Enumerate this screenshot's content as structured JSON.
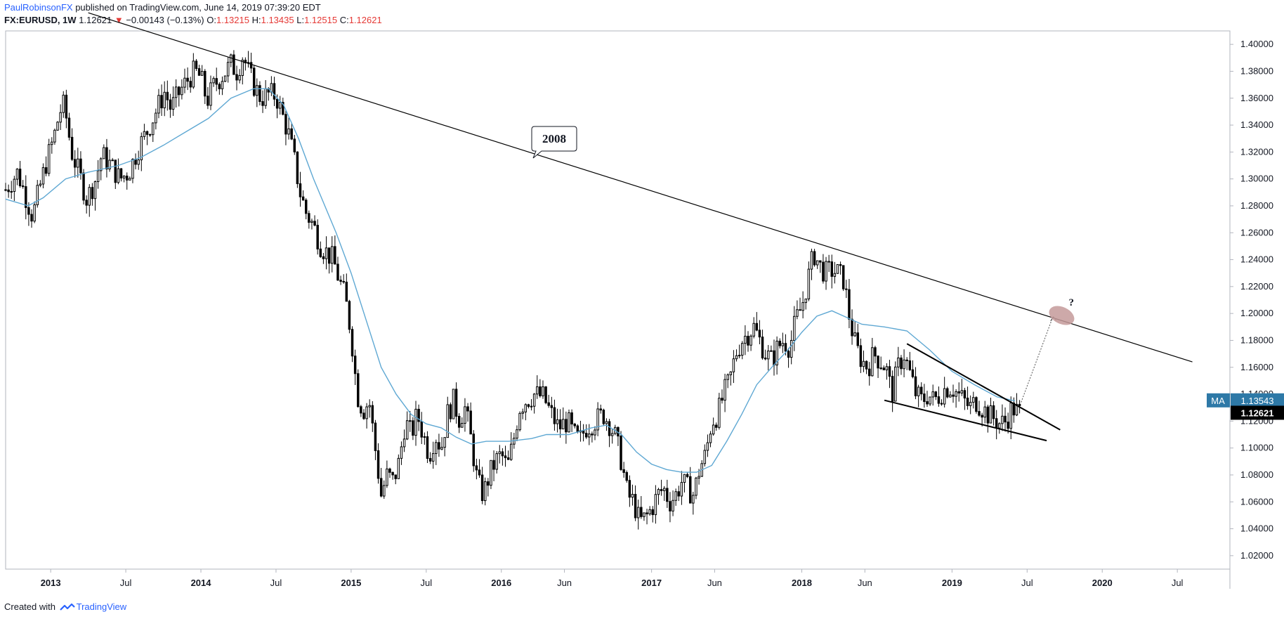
{
  "header": {
    "author": "PaulRobinsonFX",
    "published": "published on TradingView.com, June 14, 2019 07:39:20 EDT",
    "symbol": "FX:EURUSD, 1W",
    "last": "1.12621",
    "change_arrow": "▼",
    "change": "−0.00143 (−0.13%)",
    "o_label": "O:",
    "o_val": "1.13215",
    "h_label": "H:",
    "h_val": "1.13435",
    "l_label": "L:",
    "l_val": "1.12515",
    "c_label": "C:",
    "c_val": "1.12621"
  },
  "footer": {
    "created_with": "Created with",
    "brand": "TradingView"
  },
  "colors": {
    "candle": "#000000",
    "ma": "#5fa8d3",
    "trendline": "#000000",
    "ma_tag": "#2e79a7",
    "price_tag": "#000000",
    "target_ellipse": "#c49a9a"
  },
  "chart_data": {
    "type": "candlestick",
    "symbol": "FX:EURUSD",
    "interval": "1W",
    "ylim": [
      1.01,
      1.41
    ],
    "y_ticks": [
      "1.40000",
      "1.38000",
      "1.36000",
      "1.34000",
      "1.32000",
      "1.30000",
      "1.28000",
      "1.26000",
      "1.24000",
      "1.22000",
      "1.20000",
      "1.18000",
      "1.16000",
      "1.14000",
      "1.12000",
      "1.10000",
      "1.08000",
      "1.06000",
      "1.04000",
      "1.02000"
    ],
    "x_ticks": [
      "2013",
      "Jul",
      "2014",
      "Jul",
      "2015",
      "Jul",
      "2016",
      "Jun",
      "2017",
      "Jun",
      "2018",
      "Jun",
      "2019",
      "Jul",
      "2020",
      "Jul"
    ],
    "x_ticks_decimal": [
      2013.0,
      2013.5,
      2014.0,
      2014.5,
      2015.0,
      2015.5,
      2016.0,
      2016.42,
      2017.0,
      2017.42,
      2018.0,
      2018.42,
      2019.0,
      2019.5,
      2020.0,
      2020.5
    ],
    "x_range": [
      2012.7,
      2020.85
    ],
    "close_path": [
      [
        2012.7,
        1.292
      ],
      [
        2012.78,
        1.305
      ],
      [
        2012.84,
        1.285
      ],
      [
        2012.88,
        1.272
      ],
      [
        2012.93,
        1.295
      ],
      [
        2012.97,
        1.312
      ],
      [
        2013.02,
        1.33
      ],
      [
        2013.06,
        1.35
      ],
      [
        2013.09,
        1.355
      ],
      [
        2013.14,
        1.32
      ],
      [
        2013.2,
        1.3
      ],
      [
        2013.24,
        1.285
      ],
      [
        2013.3,
        1.3
      ],
      [
        2013.34,
        1.318
      ],
      [
        2013.4,
        1.31
      ],
      [
        2013.46,
        1.3
      ],
      [
        2013.52,
        1.305
      ],
      [
        2013.58,
        1.322
      ],
      [
        2013.64,
        1.335
      ],
      [
        2013.7,
        1.35
      ],
      [
        2013.76,
        1.365
      ],
      [
        2013.8,
        1.352
      ],
      [
        2013.86,
        1.365
      ],
      [
        2013.92,
        1.375
      ],
      [
        2013.96,
        1.38
      ],
      [
        2014.0,
        1.375
      ],
      [
        2014.04,
        1.358
      ],
      [
        2014.09,
        1.37
      ],
      [
        2014.15,
        1.378
      ],
      [
        2014.2,
        1.385
      ],
      [
        2014.24,
        1.38
      ],
      [
        2014.28,
        1.392
      ],
      [
        2014.32,
        1.378
      ],
      [
        2014.36,
        1.368
      ],
      [
        2014.4,
        1.36
      ],
      [
        2014.45,
        1.363
      ],
      [
        2014.5,
        1.362
      ],
      [
        2014.54,
        1.348
      ],
      [
        2014.58,
        1.335
      ],
      [
        2014.62,
        1.315
      ],
      [
        2014.66,
        1.29
      ],
      [
        2014.7,
        1.275
      ],
      [
        2014.75,
        1.265
      ],
      [
        2014.8,
        1.25
      ],
      [
        2014.84,
        1.245
      ],
      [
        2014.88,
        1.24
      ],
      [
        2014.92,
        1.225
      ],
      [
        2014.96,
        1.212
      ],
      [
        2015.0,
        1.185
      ],
      [
        2015.04,
        1.14
      ],
      [
        2015.08,
        1.128
      ],
      [
        2015.12,
        1.135
      ],
      [
        2015.16,
        1.1
      ],
      [
        2015.2,
        1.065
      ],
      [
        2015.24,
        1.08
      ],
      [
        2015.28,
        1.075
      ],
      [
        2015.32,
        1.09
      ],
      [
        2015.36,
        1.12
      ],
      [
        2015.4,
        1.11
      ],
      [
        2015.44,
        1.125
      ],
      [
        2015.48,
        1.11
      ],
      [
        2015.52,
        1.095
      ],
      [
        2015.56,
        1.11
      ],
      [
        2015.6,
        1.1
      ],
      [
        2015.64,
        1.125
      ],
      [
        2015.68,
        1.135
      ],
      [
        2015.72,
        1.122
      ],
      [
        2015.76,
        1.13
      ],
      [
        2015.8,
        1.105
      ],
      [
        2015.84,
        1.075
      ],
      [
        2015.88,
        1.065
      ],
      [
        2015.92,
        1.08
      ],
      [
        2015.96,
        1.09
      ],
      [
        2016.0,
        1.095
      ],
      [
        2016.04,
        1.085
      ],
      [
        2016.08,
        1.105
      ],
      [
        2016.12,
        1.13
      ],
      [
        2016.16,
        1.135
      ],
      [
        2016.22,
        1.14
      ],
      [
        2016.28,
        1.138
      ],
      [
        2016.32,
        1.128
      ],
      [
        2016.38,
        1.115
      ],
      [
        2016.44,
        1.12
      ],
      [
        2016.48,
        1.11
      ],
      [
        2016.52,
        1.105
      ],
      [
        2016.56,
        1.115
      ],
      [
        2016.62,
        1.12
      ],
      [
        2016.68,
        1.125
      ],
      [
        2016.72,
        1.118
      ],
      [
        2016.76,
        1.108
      ],
      [
        2016.8,
        1.09
      ],
      [
        2016.84,
        1.065
      ],
      [
        2016.88,
        1.06
      ],
      [
        2016.92,
        1.045
      ],
      [
        2016.96,
        1.048
      ],
      [
        2017.0,
        1.055
      ],
      [
        2017.04,
        1.065
      ],
      [
        2017.08,
        1.07
      ],
      [
        2017.12,
        1.06
      ],
      [
        2017.16,
        1.065
      ],
      [
        2017.2,
        1.075
      ],
      [
        2017.24,
        1.07
      ],
      [
        2017.28,
        1.065
      ],
      [
        2017.32,
        1.085
      ],
      [
        2017.36,
        1.095
      ],
      [
        2017.4,
        1.12
      ],
      [
        2017.44,
        1.125
      ],
      [
        2017.48,
        1.14
      ],
      [
        2017.52,
        1.15
      ],
      [
        2017.56,
        1.17
      ],
      [
        2017.6,
        1.18
      ],
      [
        2017.64,
        1.185
      ],
      [
        2017.68,
        1.19
      ],
      [
        2017.72,
        1.18
      ],
      [
        2017.76,
        1.17
      ],
      [
        2017.8,
        1.165
      ],
      [
        2017.84,
        1.175
      ],
      [
        2017.88,
        1.18
      ],
      [
        2017.92,
        1.175
      ],
      [
        2017.96,
        1.195
      ],
      [
        2018.0,
        1.205
      ],
      [
        2018.04,
        1.225
      ],
      [
        2018.08,
        1.245
      ],
      [
        2018.12,
        1.235
      ],
      [
        2018.16,
        1.23
      ],
      [
        2018.2,
        1.232
      ],
      [
        2018.24,
        1.23
      ],
      [
        2018.28,
        1.225
      ],
      [
        2018.32,
        1.195
      ],
      [
        2018.36,
        1.175
      ],
      [
        2018.4,
        1.165
      ],
      [
        2018.44,
        1.16
      ],
      [
        2018.48,
        1.17
      ],
      [
        2018.52,
        1.165
      ],
      [
        2018.56,
        1.16
      ],
      [
        2018.6,
        1.14
      ],
      [
        2018.64,
        1.16
      ],
      [
        2018.68,
        1.17
      ],
      [
        2018.72,
        1.155
      ],
      [
        2018.76,
        1.14
      ],
      [
        2018.8,
        1.135
      ],
      [
        2018.84,
        1.14
      ],
      [
        2018.88,
        1.135
      ],
      [
        2018.92,
        1.14
      ],
      [
        2018.96,
        1.145
      ],
      [
        2019.0,
        1.145
      ],
      [
        2019.04,
        1.14
      ],
      [
        2019.08,
        1.135
      ],
      [
        2019.12,
        1.13
      ],
      [
        2019.16,
        1.135
      ],
      [
        2019.2,
        1.13
      ],
      [
        2019.24,
        1.125
      ],
      [
        2019.28,
        1.122
      ],
      [
        2019.32,
        1.118
      ],
      [
        2019.36,
        1.12
      ],
      [
        2019.4,
        1.13
      ],
      [
        2019.45,
        1.126
      ]
    ],
    "moving_average": [
      [
        2012.7,
        1.285
      ],
      [
        2012.85,
        1.28
      ],
      [
        2012.95,
        1.286
      ],
      [
        2013.1,
        1.3
      ],
      [
        2013.25,
        1.305
      ],
      [
        2013.45,
        1.31
      ],
      [
        2013.6,
        1.316
      ],
      [
        2013.75,
        1.325
      ],
      [
        2013.9,
        1.335
      ],
      [
        2014.05,
        1.345
      ],
      [
        2014.2,
        1.36
      ],
      [
        2014.35,
        1.367
      ],
      [
        2014.45,
        1.367
      ],
      [
        2014.55,
        1.355
      ],
      [
        2014.65,
        1.33
      ],
      [
        2014.75,
        1.3
      ],
      [
        2014.9,
        1.26
      ],
      [
        2015.0,
        1.23
      ],
      [
        2015.1,
        1.195
      ],
      [
        2015.2,
        1.16
      ],
      [
        2015.3,
        1.14
      ],
      [
        2015.4,
        1.125
      ],
      [
        2015.5,
        1.118
      ],
      [
        2015.6,
        1.115
      ],
      [
        2015.7,
        1.108
      ],
      [
        2015.8,
        1.103
      ],
      [
        2015.9,
        1.105
      ],
      [
        2016.05,
        1.105
      ],
      [
        2016.2,
        1.107
      ],
      [
        2016.3,
        1.11
      ],
      [
        2016.45,
        1.11
      ],
      [
        2016.6,
        1.115
      ],
      [
        2016.7,
        1.117
      ],
      [
        2016.8,
        1.11
      ],
      [
        2016.9,
        1.097
      ],
      [
        2017.0,
        1.088
      ],
      [
        2017.1,
        1.084
      ],
      [
        2017.2,
        1.082
      ],
      [
        2017.3,
        1.082
      ],
      [
        2017.4,
        1.087
      ],
      [
        2017.5,
        1.105
      ],
      [
        2017.6,
        1.125
      ],
      [
        2017.7,
        1.147
      ],
      [
        2017.8,
        1.16
      ],
      [
        2017.9,
        1.172
      ],
      [
        2018.0,
        1.186
      ],
      [
        2018.1,
        1.198
      ],
      [
        2018.2,
        1.202
      ],
      [
        2018.28,
        1.198
      ],
      [
        2018.4,
        1.192
      ],
      [
        2018.55,
        1.19
      ],
      [
        2018.7,
        1.187
      ],
      [
        2018.85,
        1.173
      ],
      [
        2019.0,
        1.157
      ],
      [
        2019.15,
        1.147
      ],
      [
        2019.3,
        1.138
      ],
      [
        2019.42,
        1.135
      ]
    ],
    "trendline_2008": {
      "from": [
        2013.25,
        1.4235
      ],
      "to": [
        2020.6,
        1.164
      ],
      "label": "2008"
    },
    "wedge_upper": {
      "from": [
        2018.7,
        1.1775
      ],
      "to": [
        2019.72,
        1.1135
      ]
    },
    "wedge_lower": {
      "from": [
        2018.55,
        1.1355
      ],
      "to": [
        2019.63,
        1.1055
      ]
    },
    "projection": {
      "from": [
        2019.46,
        1.134
      ],
      "to": [
        2019.67,
        1.197
      ],
      "marker": "?",
      "target": [
        2019.73,
        1.1985
      ]
    },
    "price_tags": [
      {
        "label": "MA",
        "value": "1.13543"
      },
      {
        "label": "",
        "value": "1.12621"
      }
    ]
  }
}
